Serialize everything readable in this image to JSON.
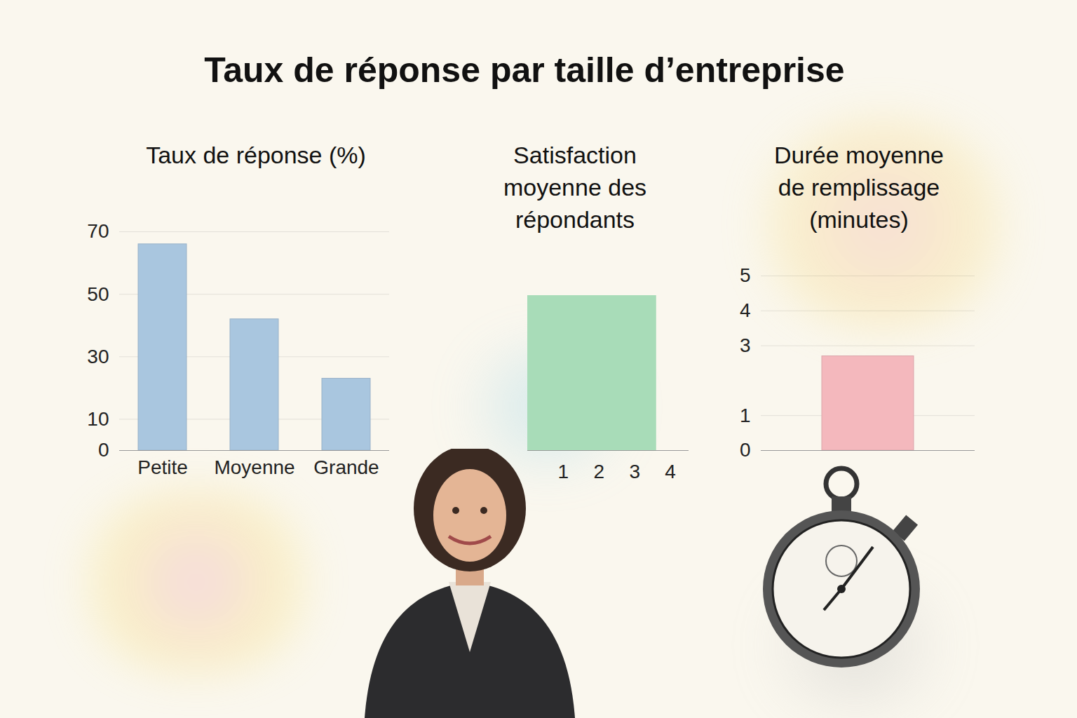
{
  "title": "Taux de réponse par taille d’entreprise",
  "chart_data": [
    {
      "type": "bar",
      "title": "Taux de réponse (%)",
      "categories": [
        "Petite",
        "Moyenne",
        "Grande"
      ],
      "values": [
        66,
        42,
        23
      ],
      "color": "#a9c6df",
      "ylim": [
        0,
        70
      ],
      "yticks": [
        0,
        10,
        30,
        50,
        70
      ],
      "grid": true
    },
    {
      "type": "bar",
      "title": "Satisfaction moyenne des répondants",
      "categories": [
        null
      ],
      "values": [
        3.6
      ],
      "color": "#a8dcb8",
      "orientation": "horizontal",
      "xlim": [
        0,
        4.5
      ],
      "xticks": [
        1,
        2,
        3,
        4
      ],
      "grid": false,
      "tick_labels": "x"
    },
    {
      "type": "bar",
      "title": "Durée moyenne de remplissage (minutes)",
      "categories": [
        null
      ],
      "values": [
        2.7
      ],
      "color": "#f4b8bd",
      "ylim": [
        0,
        5
      ],
      "yticks": [
        0,
        1,
        3,
        4,
        5
      ],
      "grid": true,
      "tick_labels": "y"
    }
  ]
}
